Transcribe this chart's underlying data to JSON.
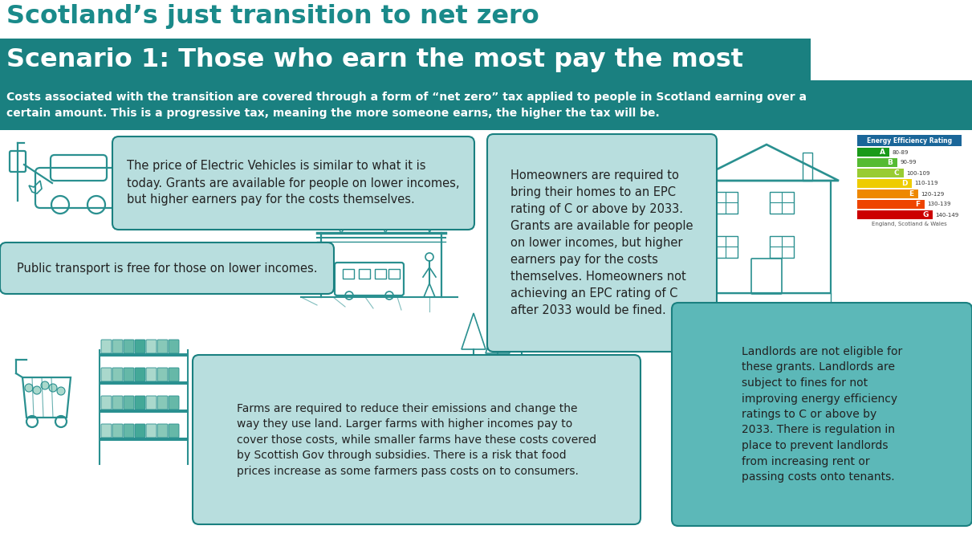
{
  "title_line1": "Scotland’s just transition to net zero",
  "title_line2": "Scenario 1: Those who earn the most pay the most",
  "title_line1_color": "#1a8a8a",
  "title_line2_bg": "#1a8080",
  "title_line2_color": "#ffffff",
  "banner_bg": "#1a8080",
  "banner_text_color": "#ffffff",
  "banner_text_line1": "Costs associated with the transition are covered through a form of “net zero” tax applied to people in Scotland earning over a",
  "banner_text_line2": "certain amount. This is a progressive tax, meaning the more someone earns, the higher the tax will be.",
  "box_bg_light": "#b8dede",
  "box_bg_mid": "#5cb8b8",
  "box_border": "#1a8080",
  "background_color": "#ffffff",
  "text_color": "#222222",
  "box1_text": "The price of Electric Vehicles is similar to what it is\ntoday. Grants are available for people on lower incomes,\nbut higher earners pay for the costs themselves.",
  "box2_text": "Public transport is free for those on lower incomes.",
  "box3_text": "Homeowners are required to\nbring their homes to an EPC\nrating of C or above by 2033.\nGrants are available for people\non lower incomes, but higher\nearners pay for the costs\nthemselves. Homeowners not\nachieving an EPC rating of C\nafter 2033 would be fined.",
  "box4_text": "Landlords are not eligible for\nthese grants. Landlords are\nsubject to fines for not\nimproving energy efficiency\nratings to C or above by\n2033. There is regulation in\nplace to prevent landlords\nfrom increasing rent or\npassing costs onto tenants.",
  "box5_text": "Farms are required to reduce their emissions and change the\nway they use land. Larger farms with higher incomes pay to\ncover those costs, while smaller farms have these costs covered\nby Scottish Gov through subsidies. There is a risk that food\nprices increase as some farmers pass costs on to consumers.",
  "teal_dark": "#1a7070",
  "teal_icon": "#2a9090"
}
